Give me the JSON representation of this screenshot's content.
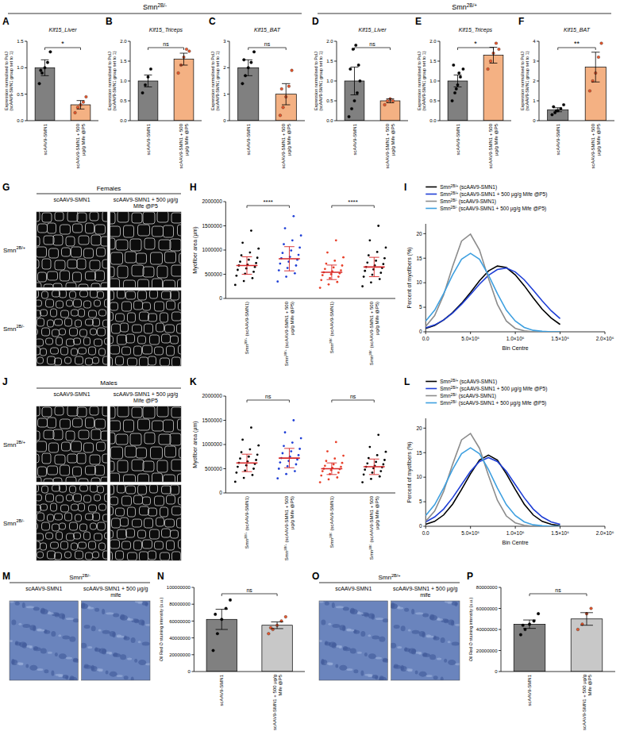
{
  "headers": [
    "Smn2B/-",
    "Smn2B/+"
  ],
  "image_panels": [
    {
      "panel": "G",
      "title": "Females",
      "kind": "fluorescence",
      "rows": [
        "Smn2B/+",
        "Smn2B/-"
      ],
      "columns": [
        "scAAV9-SMN1",
        "scAAV9-SMN1 + 500 µg/g Mife @P5"
      ]
    },
    {
      "panel": "J",
      "title": "Males",
      "kind": "fluorescence",
      "rows": [
        "Smn2B/+",
        "Smn2B/-"
      ],
      "columns": [
        "scAAV9-SMN1",
        "scAAV9-SMN1 + 500 µg/g Mife @P5"
      ]
    },
    {
      "panel": "M",
      "title": "Smn2B/-",
      "kind": "histology",
      "columns": [
        "scAAV9-SMN1",
        "scAAV9-SMN1 + 500 µg/g mife"
      ]
    },
    {
      "panel": "O",
      "title": "Smn2B/+",
      "kind": "histology",
      "columns": [
        "scAAV9-SMN1",
        "scAAV9-SMN1 + 500 µg/g mife"
      ]
    }
  ],
  "chart_data": [
    {
      "panel": "A",
      "type": "bar",
      "title": "Klf15_Liver",
      "y_label": "Expression normalised to PolJ (scAAV9-SMN1 group set to 1)",
      "categories": [
        "scAAV9-SMN1",
        "scAAV9-SMN1 + 500 µg/g Mife @P5"
      ],
      "values": [
        1.0,
        0.3
      ],
      "errors": [
        0.15,
        0.08
      ],
      "points": [
        [
          0.7,
          0.9,
          1.0,
          1.1,
          1.3,
          0.95
        ],
        [
          0.15,
          0.25,
          0.3,
          0.35,
          0.45
        ]
      ],
      "colors": [
        "#808080",
        "#f4b183"
      ],
      "ylim": [
        0,
        1.5
      ],
      "yticks": [
        {
          "value": 0,
          "label": "0.0"
        },
        0.5,
        {
          "value": 1,
          "label": "1.0"
        },
        1.5
      ],
      "significance": "*"
    },
    {
      "panel": "B",
      "type": "bar",
      "title": "Klf15_Triceps",
      "y_label": "Expression normalised to PolJ (scAAV9-SMN1 group set to 1)",
      "categories": [
        "scAAV9-SMN1",
        "scAAV9-SMN1 + 500 µg/g Mife @P5"
      ],
      "values": [
        1.0,
        1.55
      ],
      "errors": [
        0.15,
        0.15
      ],
      "points": [
        [
          0.7,
          0.9,
          1.1,
          1.3
        ],
        [
          1.2,
          1.4,
          1.6,
          1.8,
          1.75
        ]
      ],
      "colors": [
        "#808080",
        "#f4b183"
      ],
      "ylim": [
        0,
        2
      ],
      "yticks": [
        {
          "value": 0,
          "label": "0.0"
        },
        0.5,
        {
          "value": 1,
          "label": "1.0"
        },
        1.5,
        {
          "value": 2,
          "label": "2.0"
        }
      ],
      "significance": "ns"
    },
    {
      "panel": "C",
      "type": "bar",
      "title": "Klf15_BAT",
      "y_label": "Expression normalised to PolJ (scAAV9-SMN1 group set to 1)",
      "categories": [
        "scAAV9-SMN1",
        "scAAV9-SMN1 + 500 µg/g Mife @P5"
      ],
      "values": [
        2.0,
        1.0
      ],
      "errors": [
        0.3,
        0.4
      ],
      "points": [
        [
          1.4,
          1.7,
          2.0,
          2.2,
          2.6,
          2.3
        ],
        [
          0.2,
          0.5,
          0.9,
          1.3,
          1.9,
          1.2
        ]
      ],
      "colors": [
        "#808080",
        "#f4b183"
      ],
      "ylim": [
        0,
        3
      ],
      "yticks": [
        0,
        1,
        2,
        3
      ],
      "significance": "ns"
    },
    {
      "panel": "D",
      "type": "bar",
      "title": "Klf15_Liver",
      "y_label": "Expression normalised to PolJ (scAAV9-SMN1 group set to 1)",
      "categories": [
        "scAAV9-SMN1",
        "scAAV9-SMN1 + 500 µg/g Mife @P5"
      ],
      "values": [
        1.0,
        0.5
      ],
      "errors": [
        0.35,
        0.05
      ],
      "points": [
        [
          0.1,
          0.3,
          0.5,
          0.7,
          1.0,
          1.3,
          1.8,
          1.9,
          1.4
        ],
        [
          0.4,
          0.5,
          0.55,
          0.5
        ]
      ],
      "colors": [
        "#808080",
        "#f4b183"
      ],
      "ylim": [
        0,
        2
      ],
      "yticks": [
        {
          "value": 0,
          "label": "0.0"
        },
        0.5,
        {
          "value": 1,
          "label": "1.0"
        },
        1.5,
        {
          "value": 2,
          "label": "2.0"
        }
      ],
      "significance": "ns"
    },
    {
      "panel": "E",
      "type": "bar",
      "title": "Klf15_Triceps",
      "y_label": "Expression normalised to PolJ (scAAV9-SMN1 group set to 1)",
      "categories": [
        "scAAV9-SMN1",
        "scAAV9-SMN1 + 500 µg/g Mife @P5"
      ],
      "values": [
        1.0,
        1.65
      ],
      "errors": [
        0.15,
        0.2
      ],
      "points": [
        [
          0.5,
          0.7,
          0.9,
          1.1,
          1.3,
          1.4,
          0.8,
          1.2
        ],
        [
          1.3,
          1.5,
          1.7,
          1.95,
          1.8
        ]
      ],
      "colors": [
        "#808080",
        "#f4b183"
      ],
      "ylim": [
        0,
        2
      ],
      "yticks": [
        {
          "value": 0,
          "label": "0.0"
        },
        0.5,
        {
          "value": 1,
          "label": "1.0"
        },
        1.5,
        {
          "value": 2,
          "label": "2.0"
        }
      ],
      "significance": "*"
    },
    {
      "panel": "F",
      "type": "bar",
      "title": "Klf15_BAT",
      "y_label": "Expression normalised to PolJ (scAAV9-SMN1 group set to 1)",
      "categories": [
        "scAAV9-SMN1",
        "scAAV9-SMN1 + 500 µg/g Mife @P5"
      ],
      "values": [
        0.55,
        2.7
      ],
      "errors": [
        0.1,
        0.75
      ],
      "points": [
        [
          0.3,
          0.4,
          0.5,
          0.6,
          0.8,
          0.7,
          0.5
        ],
        [
          1.5,
          2.0,
          2.4,
          3.2,
          3.9
        ]
      ],
      "colors": [
        "#808080",
        "#f4b183"
      ],
      "ylim": [
        0,
        4
      ],
      "yticks": [
        0,
        1,
        2,
        3,
        4
      ],
      "significance": "**"
    },
    {
      "panel": "H",
      "type": "dot",
      "y_label": "Myofiber area (µm)",
      "categories": [
        "Smn2B/+ (scAAV9-SMN1)",
        "Smn2B/+ (scAAV9-SMN1 + 500 µg/g Mife @P5)",
        "Smn2B/- (scAAV9-SMN1)",
        "Smn2B/- (scAAV9-SMN1 + 500 µg/g Mife @P5)"
      ],
      "points": [
        [
          280000,
          360000,
          420000,
          470000,
          510000,
          550000,
          590000,
          620000,
          650000,
          680000,
          700000,
          730000,
          760000,
          800000,
          840000,
          890000,
          950000,
          1030000,
          1150000,
          1400000
        ],
        [
          350000,
          450000,
          520000,
          580000,
          630000,
          680000,
          720000,
          760000,
          800000,
          830000,
          860000,
          900000,
          940000,
          990000,
          1050000,
          1120000,
          1200000,
          1300000,
          1450000,
          1700000
        ],
        [
          220000,
          290000,
          340000,
          380000,
          420000,
          450000,
          480000,
          500000,
          520000,
          540000,
          560000,
          580000,
          610000,
          640000,
          680000,
          720000,
          780000,
          850000,
          950000,
          1200000
        ],
        [
          250000,
          330000,
          400000,
          450000,
          490000,
          530000,
          570000,
          600000,
          630000,
          650000,
          680000,
          710000,
          740000,
          780000,
          830000,
          890000,
          960000,
          1050000,
          1200000,
          1500000
        ]
      ],
      "means": [
        680000,
        820000,
        540000,
        650000
      ],
      "sd": [
        180000,
        250000,
        150000,
        200000
      ],
      "colors": [
        "#000000",
        "#1f3fd6",
        "#e8402a",
        "#000000"
      ],
      "ylim": [
        0,
        2000000
      ],
      "yticks": [
        0,
        500000,
        1000000,
        1500000,
        2000000
      ],
      "significance": [
        "****",
        "****"
      ]
    },
    {
      "panel": "I",
      "type": "line",
      "x_label": "Bin Centre",
      "y_label": "Percent of myofibers (%)",
      "x": [
        0,
        100000,
        200000,
        300000,
        400000,
        500000,
        600000,
        700000,
        800000,
        900000,
        1000000,
        1100000,
        1200000,
        1300000,
        1400000,
        1500000
      ],
      "series": [
        {
          "name": "Smn2B/+ (scAAV9-SMN1)",
          "color": "#000000",
          "values": [
            0.7,
            1.3,
            2.4,
            3.9,
            5.8,
            8.0,
            10.4,
            12.4,
            13.4,
            13.1,
            11.6,
            9.4,
            6.9,
            4.6,
            2.8,
            1.5
          ]
        },
        {
          "name": "Smn2B/+ (scAAV9-SMN1 + 500 µg/g Mife @P5)",
          "color": "#1f3fd6",
          "values": [
            0.8,
            1.4,
            2.4,
            3.8,
            5.6,
            7.6,
            9.7,
            11.5,
            12.7,
            13.0,
            12.2,
            10.6,
            8.5,
            6.3,
            4.3,
            2.7
          ]
        },
        {
          "name": "Smn2B/- (scAAV9-SMN1)",
          "color": "#8c8c8c",
          "values": [
            1.1,
            3.3,
            7.5,
            13.3,
            18.5,
            19.9,
            16.7,
            10.9,
            5.6,
            2.2,
            0.7,
            0.2,
            0.0,
            0.0,
            0.0,
            0.0
          ]
        },
        {
          "name": "Smn2B/- (scAAV9-SMN1 + 500 µg/g Mife @P5)",
          "color": "#3fa0e0",
          "values": [
            2.2,
            4.4,
            7.8,
            11.6,
            14.8,
            16.0,
            14.8,
            11.6,
            7.8,
            4.4,
            2.2,
            0.9,
            0.3,
            0.1,
            0.0,
            0.0
          ]
        }
      ],
      "xlim": [
        0,
        2000000
      ],
      "xticks": [
        {
          "value": 0,
          "label": "0.0"
        },
        {
          "value": 500000,
          "label": "5.0×10⁵"
        },
        {
          "value": 1000000,
          "label": "1.0×10⁶"
        },
        {
          "value": 1500000,
          "label": "1.5×10⁶"
        },
        {
          "value": 2000000,
          "label": "2.0×10⁶"
        }
      ],
      "ylim": [
        0,
        22
      ],
      "yticks": [
        0,
        5,
        10,
        15,
        20
      ],
      "legend": "top"
    },
    {
      "panel": "K",
      "type": "dot",
      "y_label": "Myofiber area (µm)",
      "categories": [
        "Smn2B/+ (scAAV9-SMN1)",
        "Smn2B/+ (scAAV9-SMN1 + 500 µg/g Mife @P5)",
        "Smn2B/- (scAAV9-SMN1)",
        "Smn2B/- (scAAV9-SMN1 + 500 µg/g Mife @P5)"
      ],
      "points": [
        [
          230000,
          310000,
          370000,
          420000,
          460000,
          500000,
          540000,
          570000,
          600000,
          620000,
          650000,
          680000,
          710000,
          750000,
          790000,
          840000,
          900000,
          980000,
          1100000,
          1350000
        ],
        [
          300000,
          390000,
          450000,
          500000,
          550000,
          590000,
          630000,
          660000,
          690000,
          720000,
          750000,
          780000,
          820000,
          860000,
          910000,
          970000,
          1040000,
          1130000,
          1250000,
          1500000
        ],
        [
          220000,
          280000,
          320000,
          360000,
          390000,
          420000,
          450000,
          470000,
          490000,
          500000,
          520000,
          540000,
          560000,
          590000,
          620000,
          660000,
          710000,
          770000,
          860000,
          1050000
        ],
        [
          220000,
          290000,
          340000,
          380000,
          420000,
          450000,
          480000,
          510000,
          530000,
          540000,
          560000,
          590000,
          610000,
          640000,
          680000,
          720000,
          780000,
          850000,
          950000,
          1200000
        ]
      ],
      "means": [
        620000,
        720000,
        500000,
        540000
      ],
      "sd": [
        180000,
        200000,
        120000,
        160000
      ],
      "colors": [
        "#000000",
        "#1f3fd6",
        "#e8402a",
        "#000000"
      ],
      "ylim": [
        0,
        2000000
      ],
      "yticks": [
        0,
        500000,
        1000000,
        1500000,
        2000000
      ],
      "significance": [
        "ns",
        "ns"
      ]
    },
    {
      "panel": "L",
      "type": "line",
      "x_label": "Bin Centre",
      "y_label": "Percent of myofibers (%)",
      "x": [
        0,
        100000,
        200000,
        300000,
        400000,
        500000,
        600000,
        700000,
        800000,
        900000,
        1000000,
        1100000,
        1200000,
        1300000,
        1400000,
        1500000
      ],
      "series": [
        {
          "name": "Smn2B/+ (scAAV9-SMN1)",
          "color": "#000000",
          "values": [
            0.4,
            1.0,
            2.3,
            4.5,
            7.5,
            10.7,
            13.5,
            14.5,
            13.5,
            10.7,
            7.5,
            4.5,
            2.3,
            1.0,
            0.4,
            0.1
          ]
        },
        {
          "name": "Smn2B/+ (scAAV9-SMN1 + 500 µg/g Mife @P5)",
          "color": "#1f3fd6",
          "values": [
            0.9,
            1.9,
            3.5,
            5.8,
            8.5,
            11.2,
            13.2,
            14.0,
            13.2,
            11.2,
            8.5,
            5.8,
            3.5,
            1.9,
            0.9,
            0.4
          ]
        },
        {
          "name": "Smn2B/- (scAAV9-SMN1)",
          "color": "#8c8c8c",
          "values": [
            1.0,
            3.1,
            7.1,
            12.6,
            17.6,
            18.9,
            15.9,
            10.4,
            5.3,
            2.1,
            0.7,
            0.2,
            0.0,
            0.0,
            0.0,
            0.0
          ]
        },
        {
          "name": "Smn2B/- (scAAV9-SMN1 + 500 µg/g Mife @P5)",
          "color": "#3fa0e0",
          "values": [
            2.2,
            4.4,
            7.8,
            11.6,
            14.8,
            16.0,
            14.8,
            11.6,
            7.8,
            4.4,
            2.2,
            0.9,
            0.3,
            0.1,
            0.0,
            0.0
          ]
        }
      ],
      "xlim": [
        0,
        2000000
      ],
      "xticks": [
        {
          "value": 0,
          "label": "0.0"
        },
        {
          "value": 500000,
          "label": "5.0×10⁵"
        },
        {
          "value": 1000000,
          "label": "1.0×10⁶"
        },
        {
          "value": 1500000,
          "label": "1.5×10⁶"
        },
        {
          "value": 2000000,
          "label": "2.0×10⁶"
        }
      ],
      "ylim": [
        0,
        22
      ],
      "yticks": [
        0,
        5,
        10,
        15,
        20
      ],
      "legend": "top"
    },
    {
      "panel": "N",
      "type": "bar",
      "y_label": "Oil Red O staining intensity (a.u.)",
      "categories": [
        "scAAV9-SMN1",
        "scAAV9-SMN1 + 500 µg/g Mife @P5"
      ],
      "values": [
        62000000,
        55000000
      ],
      "errors": [
        12000000,
        4000000
      ],
      "points": [
        [
          25000000,
          45000000,
          62000000,
          75000000,
          85000000,
          68000000
        ],
        [
          45000000,
          50000000,
          55000000,
          60000000,
          65000000,
          52000000
        ]
      ],
      "colors": [
        "#808080",
        "#c8c8c8"
      ],
      "ylim": [
        0,
        100000000
      ],
      "yticks": [
        0,
        20000000,
        40000000,
        60000000,
        80000000,
        100000000
      ],
      "significance": "ns"
    },
    {
      "panel": "P",
      "type": "bar",
      "y_label": "Oil Red O staining intensity (a.u.)",
      "categories": [
        "scAAV9-SMN1",
        "scAAV9-SMN1 + 500 µg/g Mife @P5"
      ],
      "values": [
        45000000,
        50000000
      ],
      "errors": [
        4000000,
        6000000
      ],
      "points": [
        [
          35000000,
          40000000,
          45000000,
          48000000,
          55000000,
          44000000
        ],
        [
          40000000,
          45000000,
          55000000,
          60000000
        ]
      ],
      "colors": [
        "#808080",
        "#c8c8c8"
      ],
      "ylim": [
        0,
        80000000
      ],
      "yticks": [
        0,
        20000000,
        40000000,
        60000000,
        80000000
      ],
      "significance": "ns"
    }
  ]
}
